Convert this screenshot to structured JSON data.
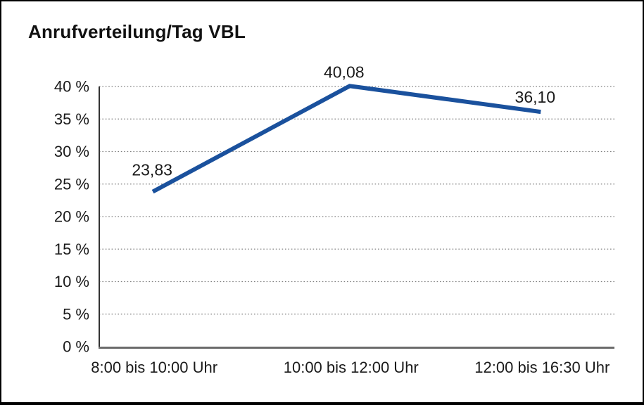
{
  "chart_data": {
    "type": "line",
    "title": "Anrufverteilung/Tag VBL",
    "categories": [
      "8:00 bis 10:00 Uhr",
      "10:00 bis 12:00 Uhr",
      "12:00 bis 16:30 Uhr"
    ],
    "series": [
      {
        "values": [
          23.83,
          40.08,
          36.1
        ]
      }
    ],
    "point_labels": [
      "23,83",
      "40,08",
      "36,10"
    ],
    "y_tick_labels": [
      "0 %",
      "5 %",
      "10 %",
      "15 %",
      "20 %",
      "25 %",
      "30 %",
      "35 %",
      "40 %"
    ],
    "ylim": [
      0,
      40
    ],
    "y_step": 5,
    "xlabel": "",
    "ylabel": "",
    "legend": "none",
    "grid": "horizontal-dotted",
    "colors": {
      "line": "#1a519d",
      "text": "#1a1a1a",
      "gridline": "#7f7f7f",
      "y_axis": "#333333",
      "x_axis": "#6b6b6b",
      "frame_border": "#000000",
      "background": "#ffffff"
    }
  }
}
